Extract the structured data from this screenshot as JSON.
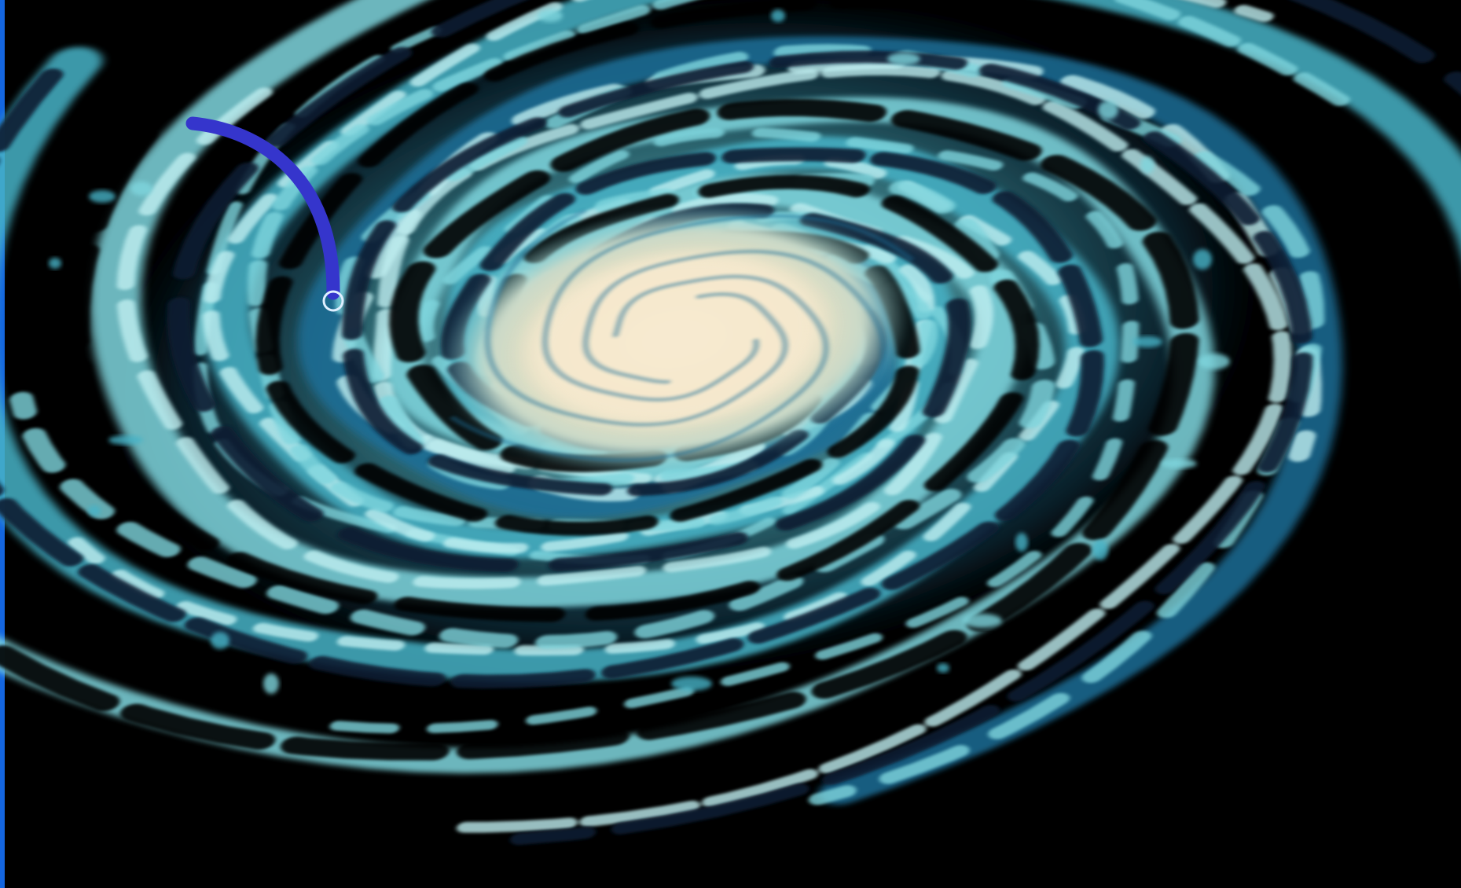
{
  "colors": {
    "background": "#000000",
    "edge_bar": "#1466e0",
    "core": "#f4e6c6",
    "core_mid": "#e9d7b4",
    "arm_light": "#7fd6de",
    "arm_mid": "#47b3c7",
    "arm_dark": "#1f6e97",
    "lane": "#0a1a33",
    "pointer_arc": "#3535cc",
    "sun_marker": "#dfefff"
  },
  "image": {
    "subject": "spiral-galaxy-illustration",
    "marker": "sun-position-marker",
    "pointer": "curved-pointer-arc"
  }
}
